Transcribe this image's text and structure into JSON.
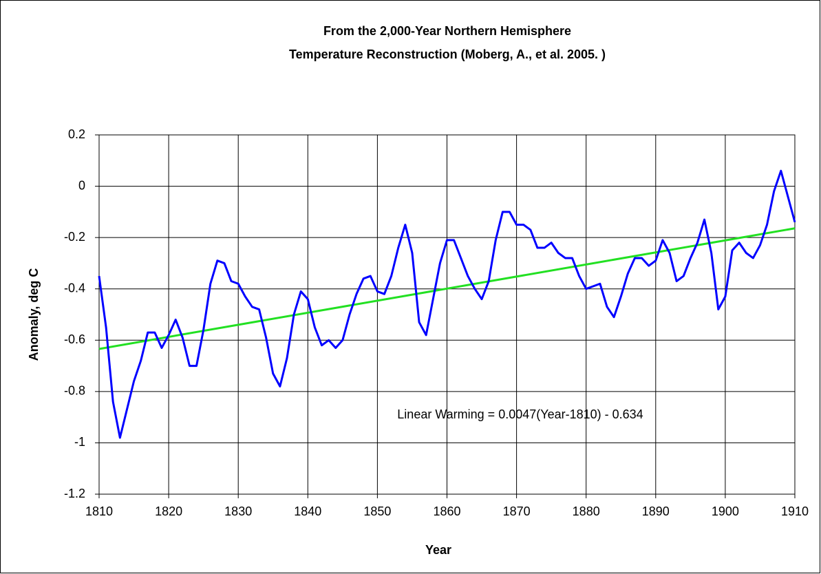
{
  "chart_data": {
    "type": "line",
    "title": [
      "From the 2,000-Year Northern Hemisphere",
      "Temperature Reconstruction (Moberg, A., et al. 2005. )"
    ],
    "x_label": "Year",
    "y_label": "Anomaly, deg C",
    "annotation": "Linear Warming = 0.0047(Year-1810) - 0.634",
    "xlim": [
      1810,
      1910
    ],
    "xticks": [
      1810,
      1820,
      1830,
      1840,
      1850,
      1860,
      1870,
      1880,
      1890,
      1900,
      1910
    ],
    "ylim": [
      -1.2,
      0.2
    ],
    "yticks": [
      0.2,
      0,
      -0.2,
      -0.4,
      -0.6,
      -0.8,
      -1,
      -1.2
    ],
    "grid": true,
    "series": [
      {
        "color": "#0000ff",
        "x": [
          1810,
          1811,
          1812,
          1813,
          1814,
          1815,
          1816,
          1817,
          1818,
          1819,
          1820,
          1821,
          1822,
          1823,
          1824,
          1825,
          1826,
          1827,
          1828,
          1829,
          1830,
          1831,
          1832,
          1833,
          1834,
          1835,
          1836,
          1837,
          1838,
          1839,
          1840,
          1841,
          1842,
          1843,
          1844,
          1845,
          1846,
          1847,
          1848,
          1849,
          1850,
          1851,
          1852,
          1853,
          1854,
          1855,
          1856,
          1857,
          1858,
          1859,
          1860,
          1861,
          1862,
          1863,
          1864,
          1865,
          1866,
          1867,
          1868,
          1869,
          1870,
          1871,
          1872,
          1873,
          1874,
          1875,
          1876,
          1877,
          1878,
          1879,
          1880,
          1881,
          1882,
          1883,
          1884,
          1885,
          1886,
          1887,
          1888,
          1889,
          1890,
          1891,
          1892,
          1893,
          1894,
          1895,
          1896,
          1897,
          1898,
          1899,
          1900,
          1901,
          1902,
          1903,
          1904,
          1905,
          1906,
          1907,
          1908,
          1909,
          1910
        ],
        "values": [
          -0.35,
          -0.55,
          -0.84,
          -0.98,
          -0.87,
          -0.76,
          -0.68,
          -0.57,
          -0.57,
          -0.63,
          -0.58,
          -0.52,
          -0.59,
          -0.7,
          -0.7,
          -0.56,
          -0.38,
          -0.29,
          -0.3,
          -0.37,
          -0.38,
          -0.43,
          -0.47,
          -0.48,
          -0.59,
          -0.73,
          -0.78,
          -0.67,
          -0.5,
          -0.41,
          -0.44,
          -0.55,
          -0.62,
          -0.6,
          -0.63,
          -0.6,
          -0.5,
          -0.42,
          -0.36,
          -0.35,
          -0.41,
          -0.42,
          -0.35,
          -0.24,
          -0.15,
          -0.26,
          -0.53,
          -0.58,
          -0.44,
          -0.3,
          -0.21,
          -0.21,
          -0.28,
          -0.35,
          -0.4,
          -0.44,
          -0.37,
          -0.21,
          -0.1,
          -0.1,
          -0.15,
          -0.15,
          -0.17,
          -0.24,
          -0.24,
          -0.22,
          -0.26,
          -0.28,
          -0.28,
          -0.35,
          -0.4,
          -0.39,
          -0.38,
          -0.47,
          -0.51,
          -0.43,
          -0.34,
          -0.28,
          -0.28,
          -0.31,
          -0.29,
          -0.21,
          -0.26,
          -0.37,
          -0.35,
          -0.28,
          -0.22,
          -0.13,
          -0.26,
          -0.48,
          -0.43,
          -0.25,
          -0.22,
          -0.26,
          -0.28,
          -0.23,
          -0.15,
          -0.02,
          0.06,
          -0.04,
          -0.14
        ]
      },
      {
        "color": "#22e022",
        "x": [
          1810,
          1910
        ],
        "values": [
          -0.634,
          -0.164
        ]
      }
    ]
  }
}
